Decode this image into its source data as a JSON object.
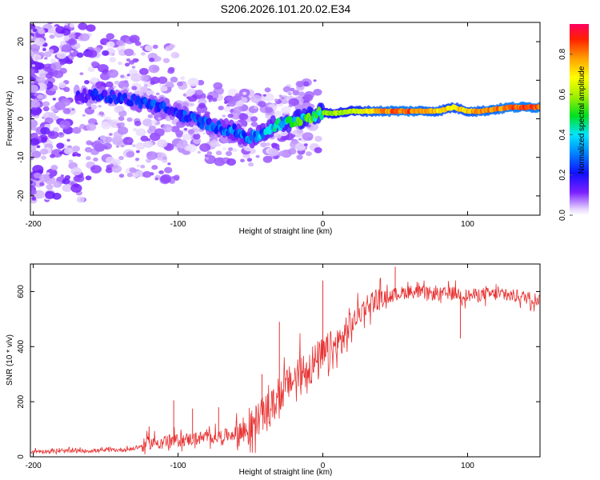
{
  "title": "S206.2026.101.20.02.E34",
  "chart_data": [
    {
      "type": "heatmap",
      "name": "spectrogram",
      "xlabel": "Height of straight line (km)",
      "ylabel": "Frequency (Hz)",
      "xlim": [
        -202,
        150
      ],
      "ylim": [
        -25,
        25
      ],
      "xticks": [
        -200,
        -100,
        0,
        100
      ],
      "yticks": [
        -20,
        -10,
        0,
        10,
        20
      ],
      "xtick_labels": [
        "-200",
        "-100",
        "0",
        "100"
      ],
      "ytick_labels": [
        "-20",
        "-10",
        "0",
        "10",
        "20"
      ],
      "ridge": {
        "x": [
          -165,
          -150,
          -135,
          -120,
          -105,
          -90,
          -75,
          -62,
          -50,
          -42,
          -35,
          -25,
          -15,
          -5,
          0,
          10,
          20,
          40,
          60,
          80,
          90,
          100,
          110,
          120,
          130,
          140,
          150
        ],
        "freq": [
          6,
          6,
          5,
          4,
          2,
          0,
          -2,
          -3,
          -5,
          -4,
          -2,
          -1,
          0,
          1,
          1.5,
          1.5,
          2,
          2,
          2,
          2,
          3,
          2,
          2,
          2.5,
          3,
          3,
          3
        ],
        "amplitude": [
          0.2,
          0.25,
          0.25,
          0.3,
          0.25,
          0.3,
          0.3,
          0.35,
          0.35,
          0.4,
          0.45,
          0.5,
          0.55,
          0.6,
          0.6,
          0.65,
          0.65,
          0.85,
          0.9,
          0.8,
          0.75,
          0.8,
          0.85,
          0.85,
          0.9,
          0.9,
          0.9
        ]
      },
      "colorbar": {
        "label": "Normalized spectral amplitude",
        "range": [
          0.0,
          0.95
        ],
        "ticks": [
          0.0,
          0.2,
          0.4,
          0.6,
          0.8
        ],
        "tick_labels": [
          "0.0",
          "0.2",
          "0.4",
          "0.6",
          "0.8"
        ]
      }
    },
    {
      "type": "line",
      "name": "snr",
      "xlabel": "Height of straight line (km)",
      "ylabel": "SNR (10 * v/v)",
      "xlim": [
        -202,
        150
      ],
      "ylim": [
        0,
        700
      ],
      "xticks": [
        -200,
        -100,
        0,
        100
      ],
      "yticks": [
        0,
        200,
        400,
        600
      ],
      "xtick_labels": [
        "-200",
        "-100",
        "0",
        "100"
      ],
      "ytick_labels": [
        "0",
        "200",
        "400",
        "600"
      ],
      "color": "#e83232",
      "series": [
        {
          "name": "SNR",
          "x": [
            -202,
            -180,
            -160,
            -140,
            -130,
            -125,
            -120,
            -110,
            -100,
            -90,
            -80,
            -70,
            -60,
            -50,
            -45,
            -40,
            -35,
            -30,
            -25,
            -20,
            -15,
            -10,
            -5,
            0,
            5,
            10,
            15,
            20,
            25,
            30,
            35,
            40,
            50,
            60,
            70,
            80,
            90,
            100,
            110,
            120,
            130,
            140,
            150
          ],
          "y": [
            20,
            20,
            22,
            25,
            30,
            40,
            50,
            55,
            60,
            65,
            70,
            75,
            85,
            100,
            140,
            160,
            180,
            220,
            260,
            280,
            300,
            330,
            340,
            360,
            380,
            400,
            440,
            480,
            520,
            550,
            570,
            575,
            590,
            600,
            595,
            590,
            595,
            585,
            590,
            590,
            585,
            580,
            570
          ]
        }
      ],
      "spikes": [
        {
          "x": -120,
          "y": 110
        },
        {
          "x": -103,
          "y": 205
        },
        {
          "x": -90,
          "y": 175
        },
        {
          "x": -72,
          "y": 180
        },
        {
          "x": -42,
          "y": 300
        },
        {
          "x": -30,
          "y": 490
        },
        {
          "x": 0,
          "y": 640
        },
        {
          "x": 50,
          "y": 690
        },
        {
          "x": 95,
          "y": 430
        }
      ]
    }
  ]
}
